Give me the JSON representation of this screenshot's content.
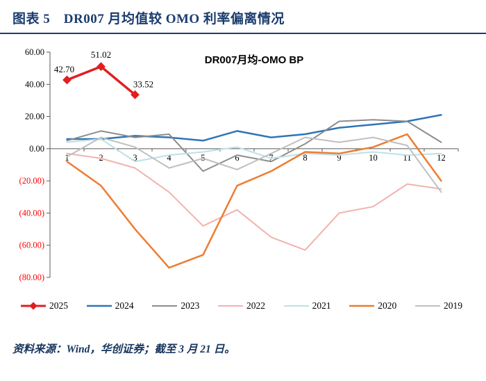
{
  "header": {
    "title": "图表 5　DR007 月均值较 OMO 利率偏离情况"
  },
  "chart_data": {
    "type": "line",
    "title": "DR007月均-OMO BP",
    "x": [
      "1",
      "2",
      "3",
      "4",
      "5",
      "6",
      "7",
      "8",
      "9",
      "10",
      "11",
      "12"
    ],
    "ylim": [
      -80,
      60
    ],
    "yticks": [
      60,
      40,
      20,
      0,
      -20,
      -40,
      -60,
      -80
    ],
    "neg_color": "#FF0000",
    "grid": false,
    "legend_position": "bottom",
    "series": [
      {
        "name": "2025",
        "color": "#E02020",
        "width": 3.5,
        "marker": "diamond",
        "values": [
          42.7,
          51.02,
          33.52
        ],
        "point_labels": [
          {
            "text": "42.70",
            "dx": -4,
            "dy": -11
          },
          {
            "text": "51.02",
            "dx": 0,
            "dy": -13
          },
          {
            "text": "33.52",
            "dx": 12,
            "dy": -11
          }
        ]
      },
      {
        "name": "2024",
        "color": "#2E75B6",
        "width": 2.5,
        "values": [
          6,
          6,
          8,
          7,
          5,
          11,
          7,
          9,
          13,
          15,
          17,
          21
        ]
      },
      {
        "name": "2023",
        "color": "#8C8C8C",
        "width": 2,
        "values": [
          5,
          11,
          7,
          9,
          -14,
          -4,
          -8,
          3,
          17,
          18,
          17,
          4
        ]
      },
      {
        "name": "2022",
        "color": "#F2B2AE",
        "width": 2,
        "values": [
          -3,
          -6,
          -12,
          -27,
          -48,
          -38,
          -55,
          -63,
          -40,
          -36,
          -22,
          -25
        ]
      },
      {
        "name": "2021",
        "color": "#BDE0E8",
        "width": 2,
        "values": [
          4,
          6,
          -8,
          -4,
          -2,
          1,
          -6,
          -3,
          -4,
          -2,
          -4,
          -3
        ]
      },
      {
        "name": "2020",
        "color": "#ED7D31",
        "width": 2.5,
        "values": [
          -8,
          -23,
          -50,
          -74,
          -66,
          -23,
          -14,
          -2,
          -3,
          1,
          9,
          -20
        ]
      },
      {
        "name": "2019",
        "color": "#BFBFBF",
        "width": 2,
        "values": [
          -5,
          7,
          1,
          -12,
          -6,
          -13,
          -3,
          7,
          4,
          7,
          2,
          -27
        ]
      }
    ]
  },
  "footer": {
    "source": "资料来源：Wind，华创证券；截至 3 月 21 日。"
  }
}
